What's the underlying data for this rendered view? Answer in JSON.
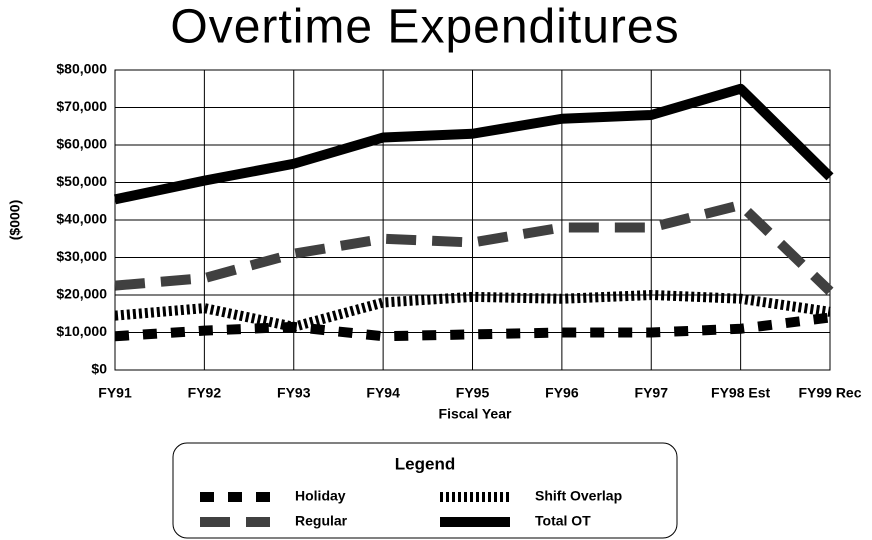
{
  "chart_data": {
    "type": "line",
    "title": "Overtime Expenditures",
    "x_label": "Fiscal Year",
    "y_label": "($000)",
    "categories": [
      "FY91",
      "FY92",
      "FY93",
      "FY94",
      "FY95",
      "FY96",
      "FY97",
      "FY98  Est",
      "FY99 Rec"
    ],
    "series": [
      {
        "name": "Holiday",
        "color": "#000000",
        "values": [
          9000,
          10500,
          11500,
          9000,
          9500,
          10000,
          10000,
          11000,
          14000
        ]
      },
      {
        "name": "Regular",
        "color": "#404040",
        "values": [
          22500,
          24500,
          31000,
          35000,
          34000,
          38000,
          38000,
          44000,
          21000
        ]
      },
      {
        "name": "Shift Overlap",
        "color": "#000000",
        "values": [
          14500,
          16500,
          11500,
          18000,
          19500,
          19000,
          20000,
          19000,
          15500
        ]
      },
      {
        "name": "Total OT",
        "color": "#000000",
        "values": [
          45500,
          50500,
          55000,
          62000,
          63000,
          67000,
          68000,
          75000,
          51500
        ]
      }
    ],
    "ylim": [
      0,
      80000
    ],
    "yticks": [
      {
        "value": 0,
        "label": "$0"
      },
      {
        "value": 10000,
        "label": "$10,000"
      },
      {
        "value": 20000,
        "label": "$20,000"
      },
      {
        "value": 30000,
        "label": "$30,000"
      },
      {
        "value": 40000,
        "label": "$40,000"
      },
      {
        "value": 50000,
        "label": "$50,000"
      },
      {
        "value": 60000,
        "label": "$60,000"
      },
      {
        "value": 70000,
        "label": "$70,000"
      },
      {
        "value": 80000,
        "label": "$80,000"
      }
    ],
    "grid": true,
    "legend_title": "Legend",
    "legend_position": "bottom"
  }
}
